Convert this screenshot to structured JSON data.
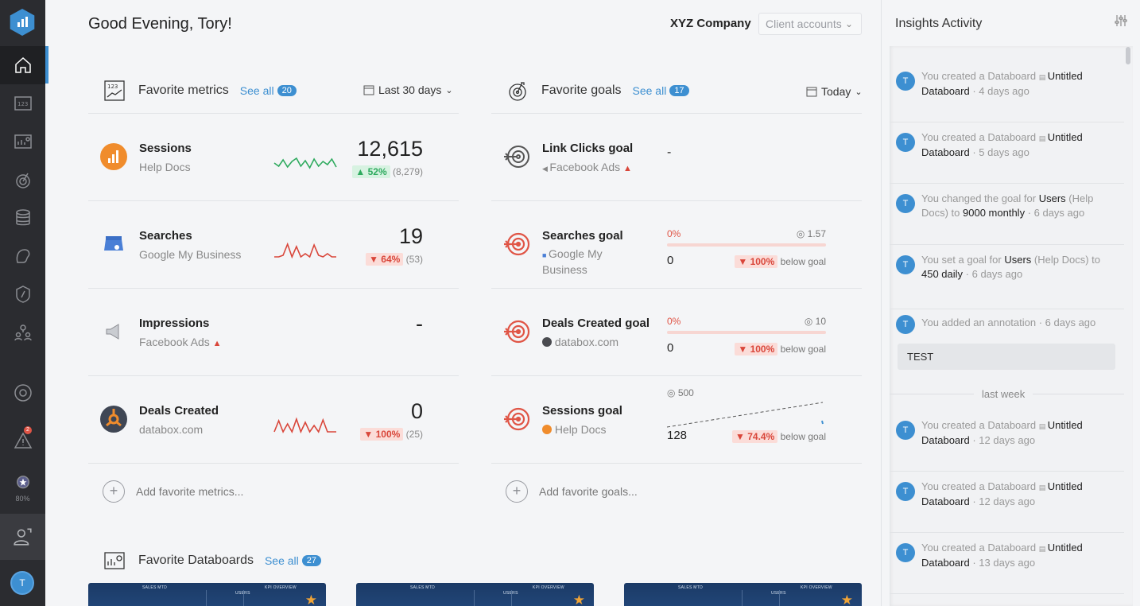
{
  "header": {
    "greeting": "Good Evening, Tory!",
    "company": "XYZ Company",
    "client_select": "Client accounts"
  },
  "rail": {
    "badge": "2",
    "progress": "80%",
    "avatar": "T",
    "icons": [
      "home-icon",
      "metrics-icon",
      "databoards-icon",
      "goals-icon",
      "data-icon",
      "alerts-icon",
      "scorecard-icon",
      "team-icon",
      "help-icon",
      "notifications-icon",
      "progress-icon",
      "account-icon"
    ]
  },
  "metrics": {
    "title": "Favorite metrics",
    "see_all": "See all",
    "count": "20",
    "range": "Last 30 days",
    "add": "Add favorite metrics...",
    "rows": [
      {
        "name": "Sessions",
        "source": "Help Docs",
        "value": "12,615",
        "delta": "▲ 52%",
        "prev": "(8,279)",
        "trend": "up",
        "spark_color": "#2eaa5e"
      },
      {
        "name": "Searches",
        "source": "Google My Business",
        "value": "19",
        "delta": "▼ 64%",
        "prev": "(53)",
        "trend": "down",
        "spark_color": "#d9463a"
      },
      {
        "name": "Impressions",
        "source": "Facebook Ads",
        "value": "-",
        "delta": "",
        "prev": "",
        "trend": "none",
        "spark_color": ""
      },
      {
        "name": "Deals Created",
        "source": "databox.com",
        "value": "0",
        "delta": "▼ 100%",
        "prev": "(25)",
        "trend": "down",
        "spark_color": "#d9463a"
      }
    ]
  },
  "goals": {
    "title": "Favorite goals",
    "see_all": "See all",
    "count": "17",
    "range": "Today",
    "add": "Add favorite goals...",
    "rows": [
      {
        "name": "Link Clicks goal",
        "source": "Facebook Ads",
        "value": "-"
      },
      {
        "name": "Searches goal",
        "source": "Google My Business",
        "pct": "0%",
        "target": "1.57",
        "current": "0",
        "delta": "▼ 100%",
        "below": "below goal"
      },
      {
        "name": "Deals Created goal",
        "source": "databox.com",
        "pct": "0%",
        "target": "10",
        "current": "0",
        "delta": "▼ 100%",
        "below": "below goal"
      },
      {
        "name": "Sessions goal",
        "source": "Help Docs",
        "target": "500",
        "current": "128",
        "delta": "▼ 74.4%",
        "below": "below goal"
      }
    ]
  },
  "databoards": {
    "title": "Favorite Databoards",
    "see_all": "See all",
    "count": "27",
    "card_labels": [
      "SALES MTD",
      "USERS",
      "KPI OVERVIEW"
    ]
  },
  "insights": {
    "title": "Insights Activity",
    "separator": "last week",
    "note": "TEST",
    "items": [
      {
        "pre": "You created a Databoard ",
        "bold": "Untitled Databoard",
        "post": " · 4 days ago"
      },
      {
        "pre": "You created a Databoard ",
        "bold": "Untitled Databoard",
        "post": " · 5 days ago"
      },
      {
        "pre": "You changed the goal for ",
        "bold": "Users",
        "mid": " (Help Docs) to ",
        "bold2": "9000 monthly",
        "post": " · 6 days ago"
      },
      {
        "pre": "You set a goal for ",
        "bold": "Users",
        "mid": " (Help Docs) to ",
        "bold2": "450 daily",
        "post": " · 6 days ago"
      },
      {
        "pre": "You added an annotation · 6 days ago"
      },
      {
        "pre": "You created a Databoard ",
        "bold": "Untitled Databoard",
        "post": " · 12 days ago"
      },
      {
        "pre": "You created a Databoard ",
        "bold": "Untitled Databoard",
        "post": " · 12 days ago"
      },
      {
        "pre": "You created a Databoard ",
        "bold": "Untitled Databoard",
        "post": " · 13 days ago"
      }
    ]
  },
  "colors": {
    "accent": "#3d8fd1",
    "up": "#2eaa5e",
    "down": "#d9463a",
    "rail": "#2b2c30"
  }
}
